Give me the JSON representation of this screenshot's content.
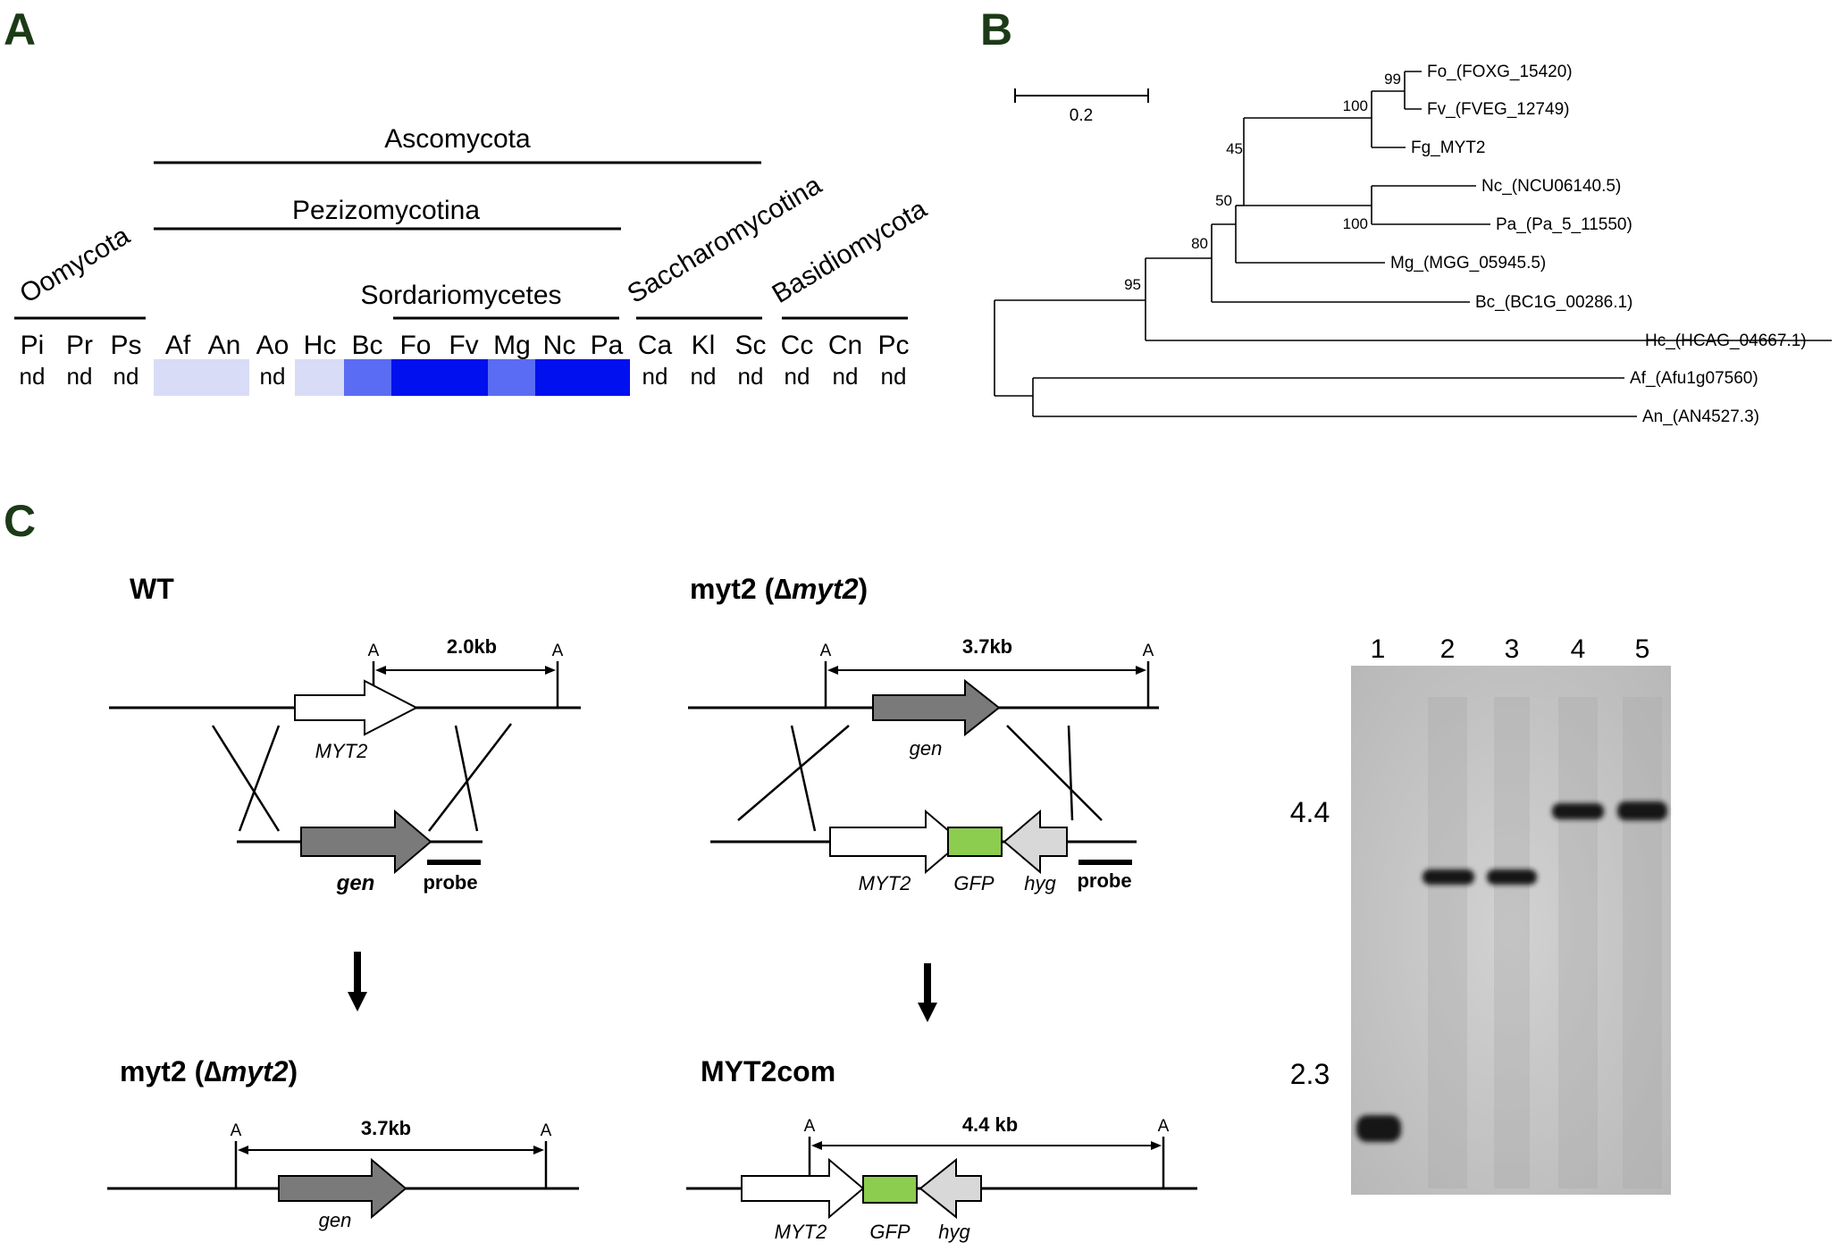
{
  "panels": {
    "a": "A",
    "b": "B",
    "c": "C"
  },
  "panel_a": {
    "groups": {
      "ascomycota": "Ascomycota",
      "pezizomycotina": "Pezizomycotina",
      "oomycota": "Oomycota",
      "sordariomycetes": "Sordariomycetes",
      "saccharomycotina": "Saccharomycotina",
      "basidiomycota": "Basidiomycota"
    },
    "species": [
      {
        "abbr": "Pi",
        "value": "nd"
      },
      {
        "abbr": "Pr",
        "value": "nd"
      },
      {
        "abbr": "Ps",
        "value": "nd"
      },
      {
        "abbr": "Af",
        "value": ""
      },
      {
        "abbr": "An",
        "value": ""
      },
      {
        "abbr": "Ao",
        "value": "nd"
      },
      {
        "abbr": "Hc",
        "value": ""
      },
      {
        "abbr": "Bc",
        "value": ""
      },
      {
        "abbr": "Fo",
        "value": ""
      },
      {
        "abbr": "Fv",
        "value": ""
      },
      {
        "abbr": "Mg",
        "value": ""
      },
      {
        "abbr": "Nc",
        "value": ""
      },
      {
        "abbr": "Pa",
        "value": ""
      },
      {
        "abbr": "Ca",
        "value": "nd"
      },
      {
        "abbr": "Kl",
        "value": "nd"
      },
      {
        "abbr": "Sc",
        "value": "nd"
      },
      {
        "abbr": "Cc",
        "value": "nd"
      },
      {
        "abbr": "Cn",
        "value": "nd"
      },
      {
        "abbr": "Pc",
        "value": "nd"
      }
    ],
    "colors": {
      "light": "#d8dcf7",
      "medium": "#5a6cf3",
      "strong": "#1e2af5",
      "dark": "#0010ee"
    }
  },
  "panel_b": {
    "scale": "0.2",
    "leaves": {
      "fo": "Fo_(FOXG_15420)",
      "fv": "Fv_(FVEG_12749)",
      "fg": "Fg_MYT2",
      "nc": "Nc_(NCU06140.5)",
      "pa": "Pa_(Pa_5_11550)",
      "mg": "Mg_(MGG_05945.5)",
      "bc": "Bc_(BC1G_00286.1)",
      "hc": "Hc_(HCAG_04667.1)",
      "af": "Af_(Afu1g07560)",
      "an": "An_(AN4527.3)"
    },
    "bootstrap": {
      "b99": "99",
      "b100a": "100",
      "b100b": "100",
      "b45": "45",
      "b50": "50",
      "b80": "80",
      "b95": "95"
    }
  },
  "panel_c": {
    "wt": {
      "title": "WT",
      "site": "A",
      "distance": "2.0kb",
      "gene": "MYT2",
      "insert_gene": "gen",
      "probe": "probe"
    },
    "mutant_construct": {
      "title_prefix": "myt2 (",
      "title_italic": "∆myt2",
      "title_suffix": ")",
      "site": "A",
      "distance": "3.7kb",
      "gene": "gen",
      "insert_genes": [
        "MYT2",
        "GFP",
        "hyg"
      ],
      "probe": "probe"
    },
    "mutant_result": {
      "title_prefix": "myt2 (",
      "title_italic": "∆myt2",
      "title_suffix": ")",
      "site": "A",
      "distance": "3.7kb",
      "gene": "gen"
    },
    "complement": {
      "title": "MYT2com",
      "site": "A",
      "distance": "4.4 kb",
      "genes": [
        "MYT2",
        "GFP",
        "hyg"
      ]
    },
    "blot": {
      "lanes": [
        "1",
        "2",
        "3",
        "4",
        "5"
      ],
      "markers": [
        "4.4",
        "2.3"
      ]
    },
    "colors": {
      "gray_arrow": "#7a7a7a",
      "light_arrow": "#d8d8d8",
      "gfp": "#8ccc4e",
      "blot": "#c8c8c8"
    }
  }
}
